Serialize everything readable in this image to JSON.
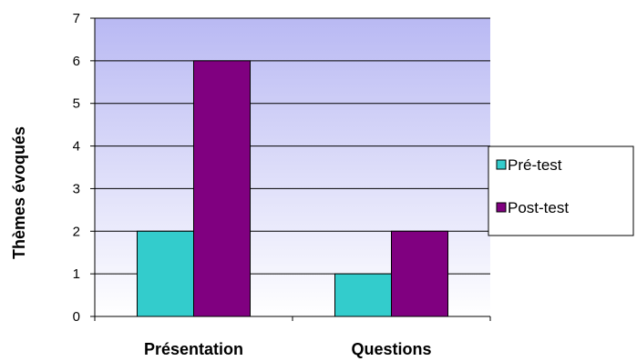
{
  "chart_data": {
    "type": "bar",
    "categories": [
      "Présentation",
      "Questions"
    ],
    "series": [
      {
        "name": "Pré-test",
        "values": [
          2,
          1
        ],
        "color": "#33cccc"
      },
      {
        "name": "Post-test",
        "values": [
          6,
          2
        ],
        "color": "#800080"
      }
    ],
    "xlabel": "",
    "ylabel": "Thèmes évoqués",
    "ylim": [
      0,
      7
    ],
    "yticks": [
      "0",
      "1",
      "2",
      "3",
      "4",
      "5",
      "6",
      "7"
    ],
    "grid": true,
    "legend_position": "right",
    "plot_background": [
      "#b9b9f3",
      "#ffffff"
    ]
  }
}
